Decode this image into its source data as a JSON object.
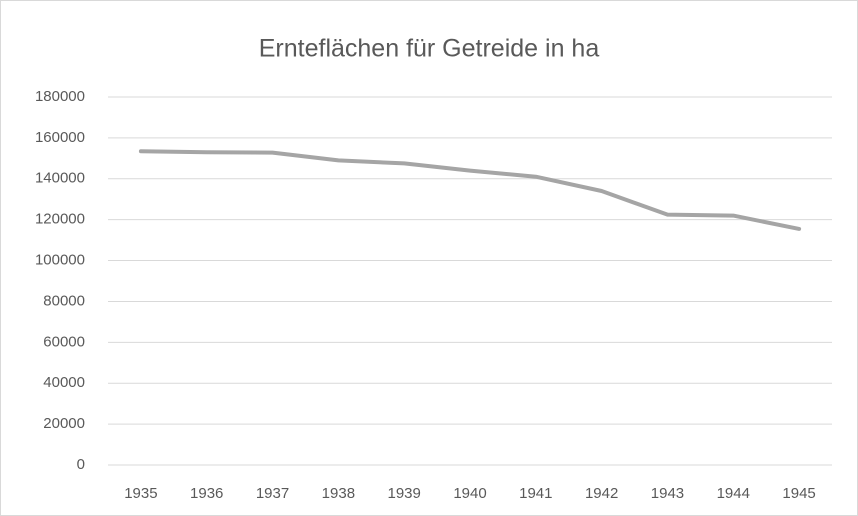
{
  "chart_data": {
    "type": "line",
    "title": "Ernteflächen für Getreide in ha",
    "categories": [
      "1935",
      "1936",
      "1937",
      "1938",
      "1939",
      "1940",
      "1941",
      "1942",
      "1943",
      "1944",
      "1945"
    ],
    "series": [
      {
        "color": "#a5a5a5",
        "values": [
          153500,
          153000,
          152800,
          149000,
          147500,
          144000,
          141000,
          134000,
          122500,
          122000,
          115500
        ]
      }
    ],
    "ylim": [
      0,
      180000
    ],
    "yticks": [
      0,
      20000,
      40000,
      60000,
      80000,
      100000,
      120000,
      140000,
      160000,
      180000
    ],
    "grid": true
  }
}
